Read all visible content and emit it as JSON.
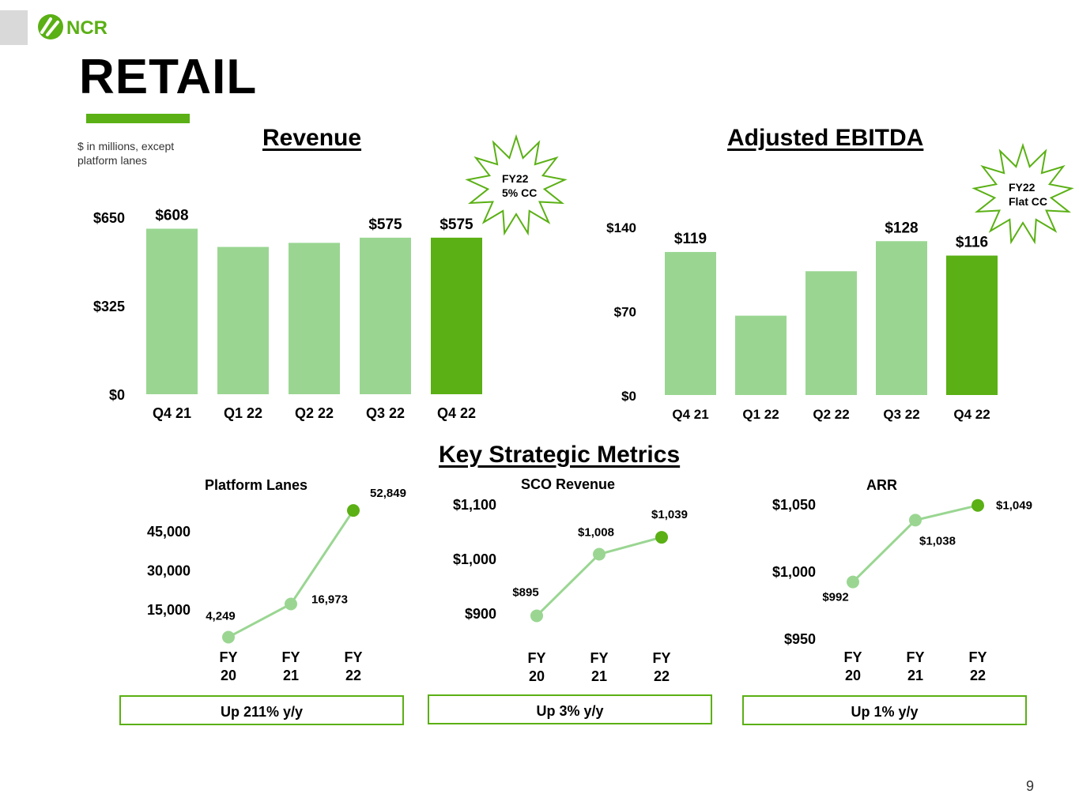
{
  "header": {
    "logo_text": "NCR",
    "title": "RETAIL",
    "units_note": "$ in millions, except platform lanes",
    "page_number": "9"
  },
  "colors": {
    "light_green": "#9ad692",
    "dark_green": "#5ab014",
    "line_green": "#9ad692"
  },
  "chart_data": [
    {
      "id": "revenue",
      "type": "bar",
      "title": "Revenue",
      "categories": [
        "Q4 21",
        "Q1 22",
        "Q2 22",
        "Q3 22",
        "Q4 22"
      ],
      "values": [
        608,
        541,
        556,
        575,
        575
      ],
      "data_labels": [
        "$608",
        "",
        "",
        "$575",
        "$575"
      ],
      "highlight_index": 4,
      "ylim": [
        0,
        650
      ],
      "yticks": [
        "$0",
        "$325",
        "$650"
      ],
      "ytick_values": [
        0,
        325,
        650
      ],
      "callout": [
        "FY22",
        "5% CC"
      ]
    },
    {
      "id": "ebitda",
      "type": "bar",
      "title": "Adjusted EBITDA",
      "categories": [
        "Q4 21",
        "Q1 22",
        "Q2 22",
        "Q3 22",
        "Q4 22"
      ],
      "values": [
        119,
        66,
        103,
        128,
        116
      ],
      "data_labels": [
        "$119",
        "",
        "",
        "$128",
        "$116"
      ],
      "highlight_index": 4,
      "ylim": [
        0,
        140
      ],
      "yticks": [
        "$0",
        "$70",
        "$140"
      ],
      "ytick_values": [
        0,
        70,
        140
      ],
      "callout": [
        "FY22",
        "Flat  CC"
      ]
    },
    {
      "id": "platform-lanes",
      "type": "line",
      "title": "Platform Lanes",
      "categories": [
        "FY 20",
        "FY 21",
        "FY 22"
      ],
      "values": [
        4249,
        16973,
        52849
      ],
      "data_labels": [
        "4,249",
        "16,973",
        "52,849"
      ],
      "ylim": [
        0,
        55000
      ],
      "yticks": [
        "15,000",
        "30,000",
        "45,000"
      ],
      "ytick_values": [
        15000,
        30000,
        45000
      ],
      "summary": "Up 211% y/y"
    },
    {
      "id": "sco-revenue",
      "type": "line",
      "title": "SCO Revenue",
      "categories": [
        "FY 20",
        "FY 21",
        "FY 22"
      ],
      "values": [
        895,
        1008,
        1039
      ],
      "data_labels": [
        "$895",
        "$1,008",
        "$1,039"
      ],
      "ylim": [
        900,
        1100
      ],
      "yticks": [
        "$900",
        "$1,000",
        "$1,100"
      ],
      "ytick_values": [
        900,
        1000,
        1100
      ],
      "summary": "Up 3% y/y"
    },
    {
      "id": "arr",
      "type": "line",
      "title": "ARR",
      "categories": [
        "FY 20",
        "FY 21",
        "FY 22"
      ],
      "values": [
        992,
        1038,
        1049
      ],
      "data_labels": [
        "$992",
        "$1,038",
        "$1,049"
      ],
      "ylim": [
        950,
        1050
      ],
      "yticks": [
        "$950",
        "$1,000",
        "$1,050"
      ],
      "ytick_values": [
        950,
        1000,
        1050
      ],
      "summary": "Up 1% y/y"
    }
  ],
  "sections": {
    "metrics_heading": "Key Strategic Metrics"
  }
}
